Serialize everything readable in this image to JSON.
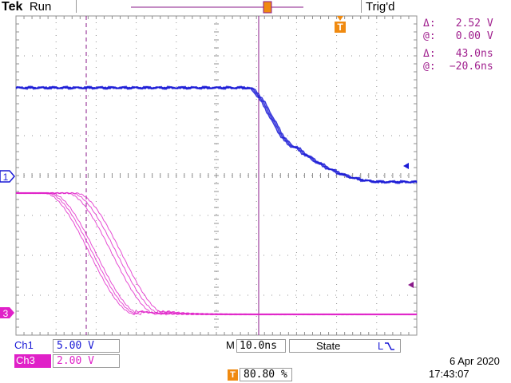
{
  "header": {
    "brand": "Tek",
    "run_state": "Run",
    "trigger_status": "Trig'd"
  },
  "measurements": {
    "voltage_delta_symbol": "Δ:",
    "voltage_delta": "2.52 V",
    "voltage_at_symbol": "@:",
    "voltage_at": "0.00 V",
    "time_delta_symbol": "Δ:",
    "time_delta": "43.0ns",
    "time_at_symbol": "@:",
    "time_at": "−20.6ns"
  },
  "markers": {
    "trigger_marker": "T",
    "ch1_marker": "1",
    "ch3_marker": "3"
  },
  "channels": [
    {
      "label": "Ch1",
      "scale": "5.00 V",
      "color": "#1a1ad6"
    },
    {
      "label": "Ch3",
      "scale": "2.00 V",
      "color": "#e020c8"
    }
  ],
  "timebase": {
    "label": "M",
    "value": "10.0ns"
  },
  "trigger": {
    "mode": "State",
    "symbol": "L",
    "position_marker": "T",
    "position": "80.80 %"
  },
  "datetime": {
    "date": "6 Apr 2020",
    "time": "17:43:07"
  },
  "colors": {
    "ch1": "#1a1ad6",
    "ch3": "#e020c8",
    "cursor": "#8a1a8a",
    "trigger": "#f08a10",
    "grid": "#909090"
  }
}
